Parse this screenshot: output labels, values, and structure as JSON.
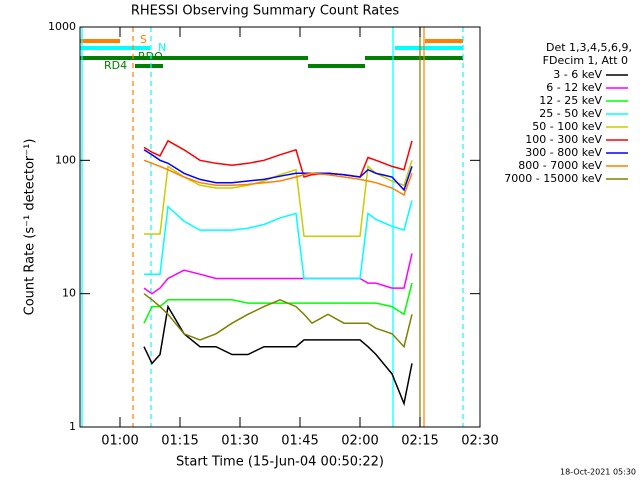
{
  "chart_data": {
    "type": "line",
    "title": "RHESSI Observing Summary Count Rates",
    "xlabel": "Start Time (15-Jun-04 00:50:22)",
    "ylabel": "Count Rate (s⁻¹ detector⁻¹)",
    "log_y": true,
    "xlim": [
      50,
      150
    ],
    "ylim": [
      1,
      1000
    ],
    "xticks": [
      {
        "value": 60,
        "label": "01:00"
      },
      {
        "value": 75,
        "label": "01:15"
      },
      {
        "value": 90,
        "label": "01:30"
      },
      {
        "value": 105,
        "label": "01:45"
      },
      {
        "value": 120,
        "label": "02:00"
      },
      {
        "value": 135,
        "label": "02:15"
      },
      {
        "value": 150,
        "label": "02:30"
      }
    ],
    "yticks": [
      1,
      10,
      100,
      1000
    ],
    "legend_title": [
      "Det 1,3,4,5,6,9,",
      "FDecim 1, Att 0"
    ],
    "state_labels": [
      "S",
      "N",
      "RDO",
      "RD4"
    ],
    "footer": "18-Oct-2021 05:30",
    "x": [
      66,
      68,
      70,
      72,
      76,
      80,
      84,
      88,
      92,
      96,
      100,
      104,
      106,
      108,
      112,
      116,
      120,
      122,
      124,
      128,
      131,
      133
    ],
    "series": [
      {
        "name": "3 - 6 keV",
        "color": "#000000",
        "values": [
          4,
          3,
          3.5,
          8,
          5,
          4,
          4,
          3.5,
          3.5,
          4,
          4,
          4,
          4.5,
          4.5,
          4.5,
          4.5,
          4.5,
          4,
          3.5,
          2.5,
          1.5,
          3
        ]
      },
      {
        "name": "6 - 12 keV",
        "color": "#ff00ff",
        "values": [
          11,
          10,
          11,
          13,
          15,
          14,
          13,
          13,
          13,
          13,
          13,
          13,
          13,
          13,
          13,
          13,
          13,
          12,
          12,
          11,
          11,
          20
        ]
      },
      {
        "name": "12 - 25 keV",
        "color": "#00ff00",
        "values": [
          6,
          8,
          8,
          9,
          9,
          9,
          9,
          9,
          8.5,
          8.5,
          8.5,
          8.5,
          8.5,
          8.5,
          8.5,
          8.5,
          8.5,
          8.5,
          8.5,
          8,
          7,
          12
        ]
      },
      {
        "name": "25 - 50 keV",
        "color": "#00ffff",
        "values": [
          14,
          14,
          14,
          45,
          35,
          30,
          30,
          30,
          31,
          33,
          37,
          40,
          13,
          13,
          13,
          13,
          13,
          40,
          36,
          32,
          30,
          50
        ]
      },
      {
        "name": "50 - 100 keV",
        "color": "#cccc00",
        "values": [
          28,
          28,
          28,
          90,
          75,
          65,
          62,
          62,
          65,
          70,
          78,
          85,
          27,
          27,
          27,
          27,
          27,
          90,
          80,
          70,
          65,
          100
        ]
      },
      {
        "name": "100 - 300 keV",
        "color": "#ff0000",
        "values": [
          125,
          115,
          108,
          140,
          120,
          100,
          95,
          92,
          95,
          100,
          110,
          120,
          75,
          78,
          80,
          78,
          75,
          105,
          100,
          90,
          85,
          140
        ]
      },
      {
        "name": "300 - 800 keV",
        "color": "#0000ff",
        "values": [
          120,
          110,
          100,
          95,
          80,
          72,
          68,
          68,
          70,
          72,
          76,
          80,
          80,
          80,
          80,
          78,
          75,
          85,
          80,
          75,
          60,
          90
        ]
      },
      {
        "name": "800 - 7000 keV",
        "color": "#ff8000",
        "values": [
          100,
          95,
          90,
          85,
          75,
          68,
          65,
          65,
          66,
          68,
          70,
          75,
          78,
          80,
          78,
          75,
          72,
          70,
          68,
          62,
          55,
          80
        ]
      },
      {
        "name": "7000 - 15000 keV",
        "color": "#808000",
        "values": [
          10,
          9,
          8,
          7,
          5,
          4.5,
          5,
          6,
          7,
          8,
          9,
          8,
          7,
          6,
          7,
          6,
          6,
          6,
          5.5,
          5,
          4,
          7
        ]
      }
    ]
  }
}
